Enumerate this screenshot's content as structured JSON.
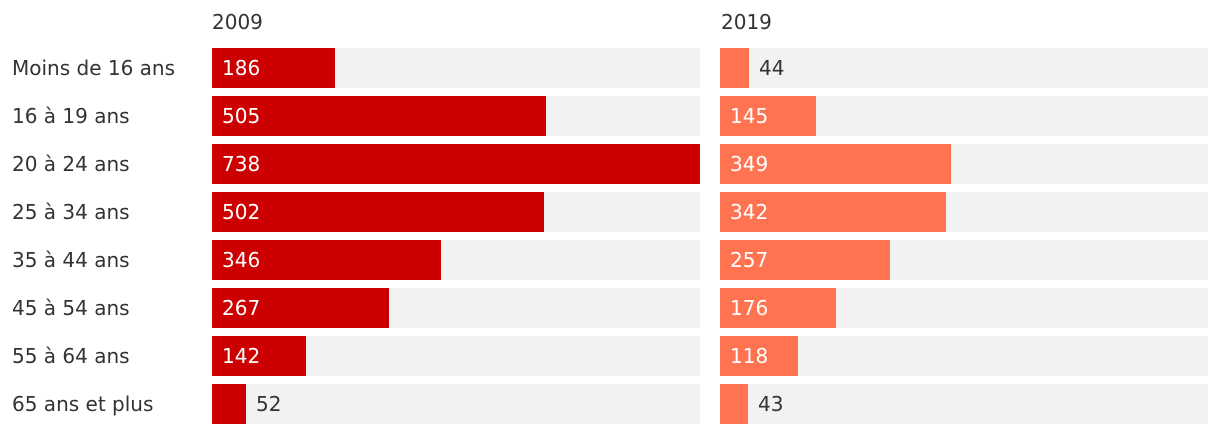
{
  "chart_data": {
    "type": "bar",
    "orientation": "horizontal",
    "categories": [
      "Moins de 16 ans",
      "16 à 19 ans",
      "20 à 24 ans",
      "25 à 34 ans",
      "35 à 44 ans",
      "45 à 54 ans",
      "55 à 64 ans",
      "65 ans et plus"
    ],
    "series": [
      {
        "name": "2009",
        "color": "#cc0000",
        "values": [
          186,
          505,
          738,
          502,
          346,
          267,
          142,
          52
        ]
      },
      {
        "name": "2019",
        "color": "#ff7350",
        "values": [
          44,
          145,
          349,
          342,
          257,
          176,
          118,
          43
        ]
      }
    ],
    "xlim": [
      0,
      738
    ],
    "track_color": "#f2f2f2",
    "grid": false,
    "legend": "none"
  }
}
